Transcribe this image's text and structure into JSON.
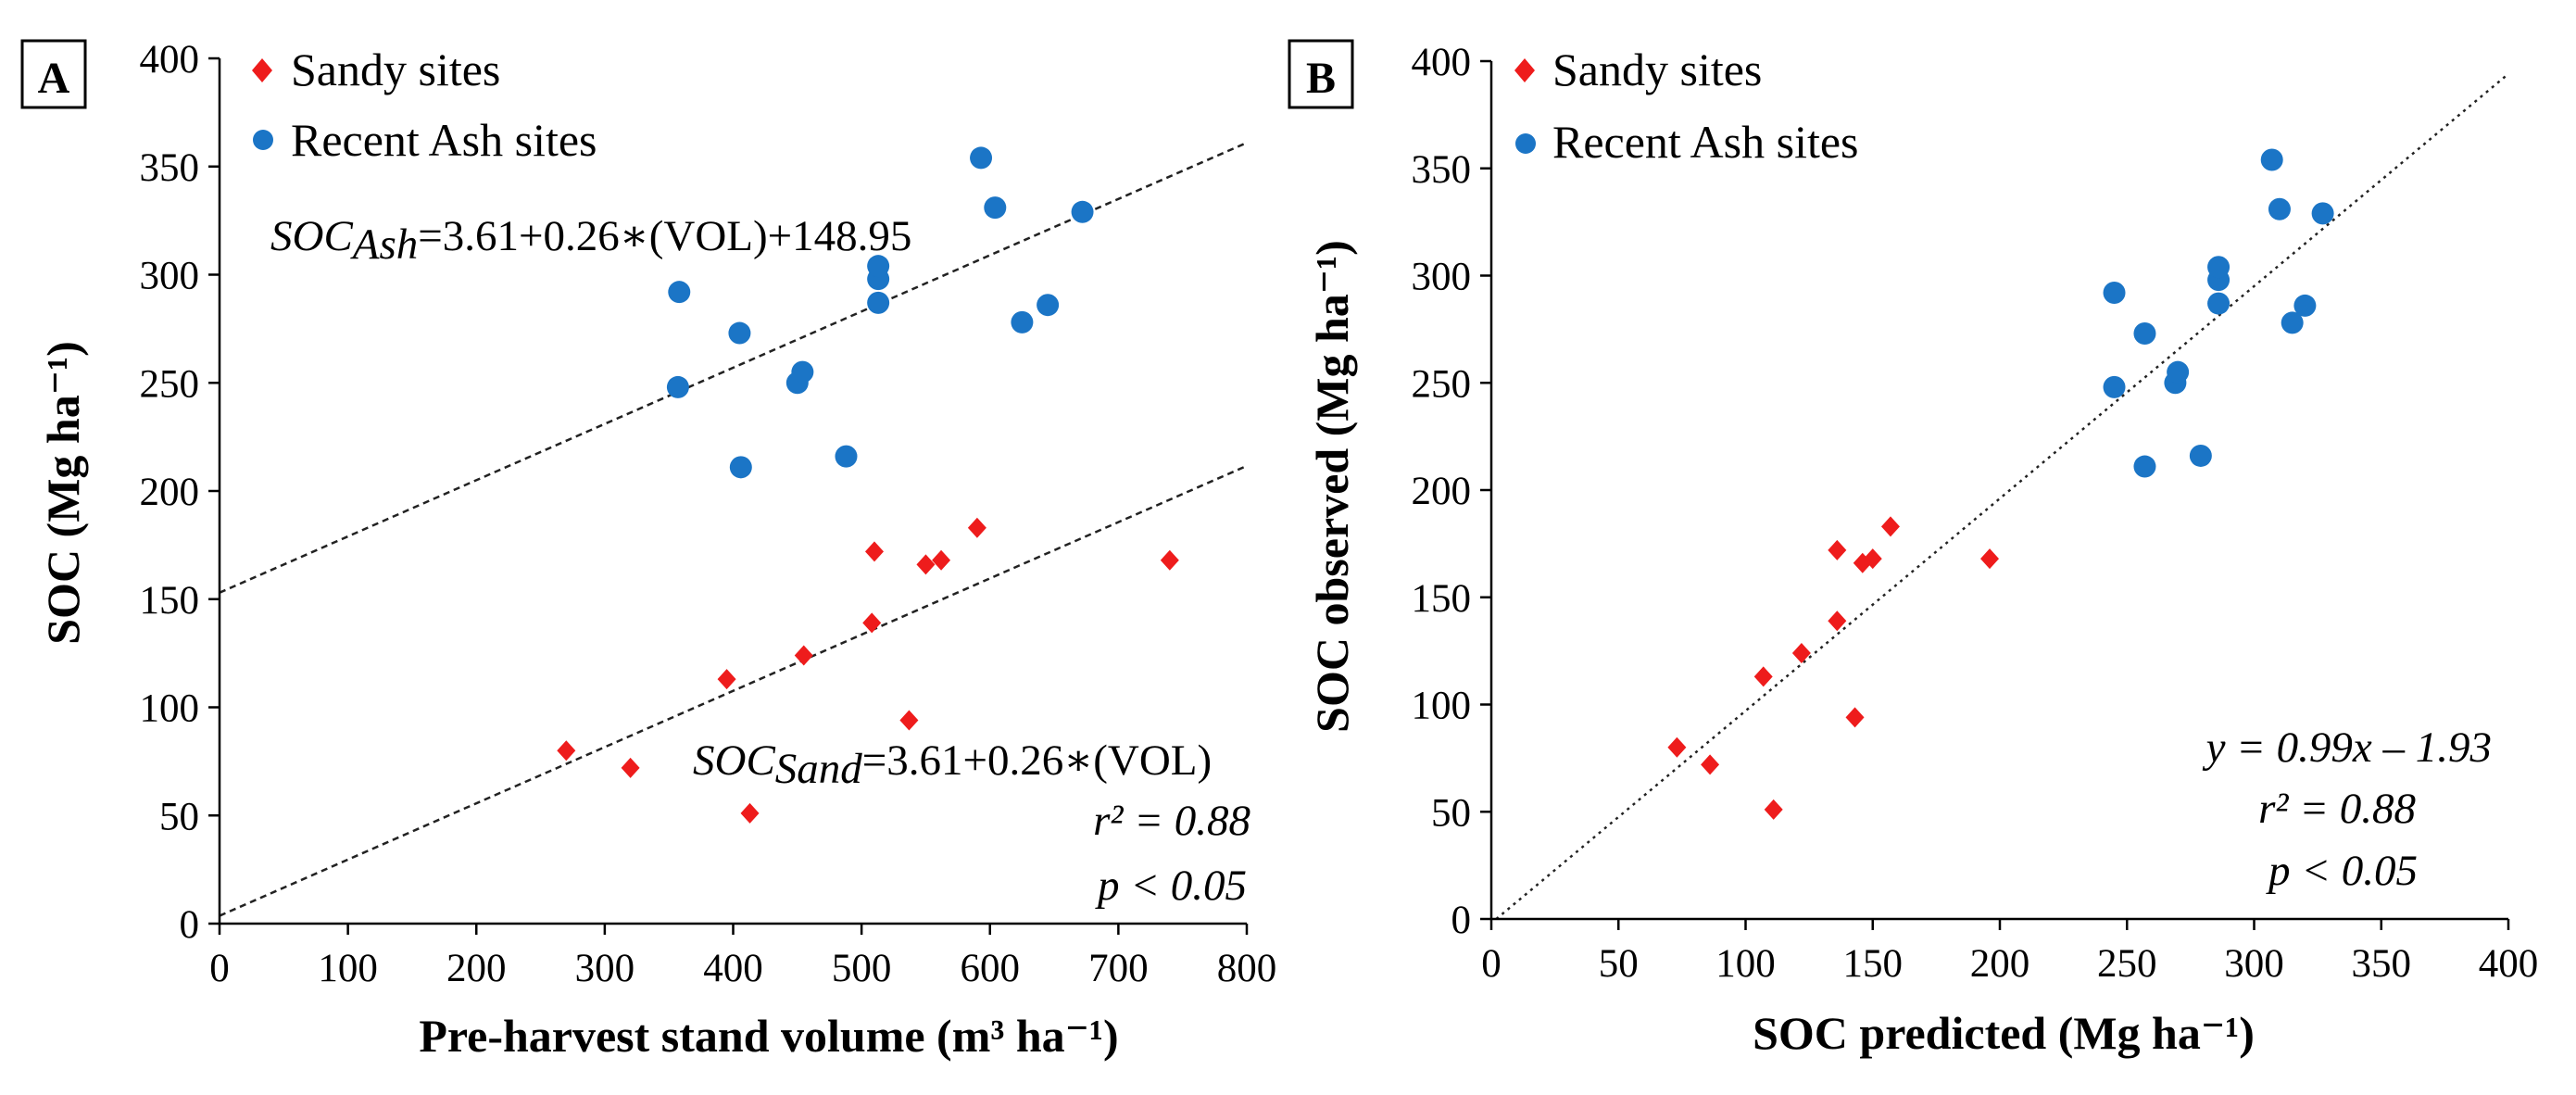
{
  "chart_data": [
    {
      "type": "scatter",
      "panel_label": "A",
      "xlabel": "Pre-harvest stand volume (m³ ha⁻¹)",
      "ylabel": "SOC (Mg ha⁻¹)",
      "xlim": [
        0,
        800
      ],
      "ylim": [
        0,
        400
      ],
      "xticks": [
        "0",
        "100",
        "200",
        "300",
        "400",
        "500",
        "600",
        "700",
        "800"
      ],
      "yticks": [
        "0",
        "50",
        "100",
        "150",
        "200",
        "250",
        "300",
        "350",
        "400"
      ],
      "grid": false,
      "legend_position": "top-left",
      "series": [
        {
          "name": "Sandy sites",
          "marker": "diamond",
          "color": "#ee1c1c",
          "points": [
            [
              270,
              80
            ],
            [
              320,
              72
            ],
            [
              395,
              113
            ],
            [
              413,
              51
            ],
            [
              455,
              124
            ],
            [
              508,
              139
            ],
            [
              510,
              172
            ],
            [
              537,
              94
            ],
            [
              550,
              166
            ],
            [
              562,
              168
            ],
            [
              590,
              183
            ],
            [
              740,
              168
            ]
          ]
        },
        {
          "name": "Recent Ash sites",
          "marker": "circle",
          "color": "#1b75c6",
          "points": [
            [
              357,
              248
            ],
            [
              358,
              292
            ],
            [
              405,
              273
            ],
            [
              406,
              211
            ],
            [
              450,
              250
            ],
            [
              454,
              255
            ],
            [
              488,
              216
            ],
            [
              513,
              287
            ],
            [
              513,
              298
            ],
            [
              513,
              304
            ],
            [
              593,
              354
            ],
            [
              604,
              331
            ],
            [
              625,
              278
            ],
            [
              645,
              286
            ],
            [
              672,
              329
            ]
          ]
        }
      ],
      "trendlines": [
        {
          "name": "Ash fit",
          "style": "dashed",
          "x": [
            0,
            800
          ],
          "y": [
            153,
            361
          ]
        },
        {
          "name": "Sand fit",
          "style": "dashed",
          "x": [
            0,
            800
          ],
          "y": [
            3.61,
            211.6
          ]
        }
      ],
      "annotations": {
        "eq_ash_prefix": "SOC",
        "eq_ash_sub": "Ash",
        "eq_ash_rest": "=3.61+0.26∗(VOL)+148.95",
        "eq_sand_prefix": "SOC",
        "eq_sand_sub": "Sand",
        "eq_sand_rest": "=3.61+0.26∗(VOL)",
        "r2_label": "r² = 0.88",
        "p_label": "p < 0.05"
      }
    },
    {
      "type": "scatter",
      "panel_label": "B",
      "xlabel": "SOC predicted (Mg ha⁻¹)",
      "ylabel": "SOC observed (Mg ha⁻¹)",
      "xlim": [
        0,
        400
      ],
      "ylim": [
        0,
        400
      ],
      "xticks": [
        "0",
        "50",
        "100",
        "150",
        "200",
        "250",
        "300",
        "350",
        "400"
      ],
      "yticks": [
        "0",
        "50",
        "100",
        "150",
        "200",
        "250",
        "300",
        "350",
        "400"
      ],
      "grid": false,
      "legend_position": "top-left",
      "series": [
        {
          "name": "Sandy sites",
          "marker": "diamond",
          "color": "#ee1c1c",
          "points": [
            [
              73,
              80
            ],
            [
              86,
              72
            ],
            [
              107,
              113
            ],
            [
              111,
              51
            ],
            [
              122,
              124
            ],
            [
              136,
              139
            ],
            [
              136,
              172
            ],
            [
              143,
              94
            ],
            [
              146,
              166
            ],
            [
              150,
              168
            ],
            [
              157,
              183
            ],
            [
              196,
              168
            ]
          ]
        },
        {
          "name": "Recent Ash sites",
          "marker": "circle",
          "color": "#1b75c6",
          "points": [
            [
              245,
              248
            ],
            [
              245,
              292
            ],
            [
              257,
              211
            ],
            [
              257,
              273
            ],
            [
              269,
              250
            ],
            [
              270,
              255
            ],
            [
              279,
              216
            ],
            [
              286,
              287
            ],
            [
              286,
              298
            ],
            [
              286,
              304
            ],
            [
              307,
              354
            ],
            [
              310,
              331
            ],
            [
              315,
              278
            ],
            [
              320,
              286
            ],
            [
              327,
              329
            ]
          ]
        }
      ],
      "trendlines": [
        {
          "name": "Fit",
          "style": "dotted",
          "x": [
            0,
            400
          ],
          "y": [
            -1.93,
            394.07
          ]
        }
      ],
      "annotations": {
        "eq_label": "y = 0.99x – 1.93",
        "r2_label": "r² = 0.88",
        "p_label": "p  < 0.05"
      }
    }
  ]
}
